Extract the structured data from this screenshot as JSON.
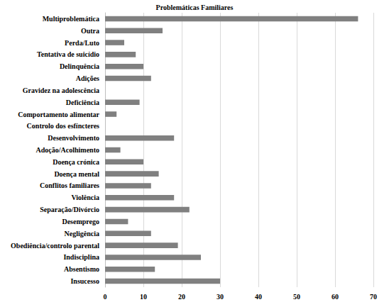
{
  "chart_data": {
    "type": "bar",
    "title": "Problemáticas Familiares",
    "orientation": "horizontal",
    "categories": [
      "Multiproblemática",
      "Outra",
      "Perda/Luto",
      "Tentativa de suicídio",
      "Delinquência",
      "Adições",
      "Gravidez na adolescência",
      "Deficiência",
      "Comportamento alimentar",
      "Controlo dos esfíncteres",
      "Desenvolvimento",
      "Adoção/Acolhimento",
      "Doença crónica",
      "Doença mental",
      "Conflitos familiares",
      "Violência",
      "Separação/Divórcio",
      "Desemprego",
      "Negligência",
      "Obediência/controlo parental",
      "Indisciplina",
      "Absentismo",
      "Insucesso"
    ],
    "values": [
      66,
      15,
      5,
      8,
      10,
      12,
      0,
      9,
      3,
      0,
      18,
      4,
      10,
      14,
      12,
      18,
      22,
      6,
      12,
      19,
      25,
      13,
      30
    ],
    "color": "#808080",
    "xlim": [
      0,
      70
    ],
    "xticks": [
      0,
      10,
      20,
      30,
      40,
      50,
      60,
      70
    ],
    "grid": true
  }
}
